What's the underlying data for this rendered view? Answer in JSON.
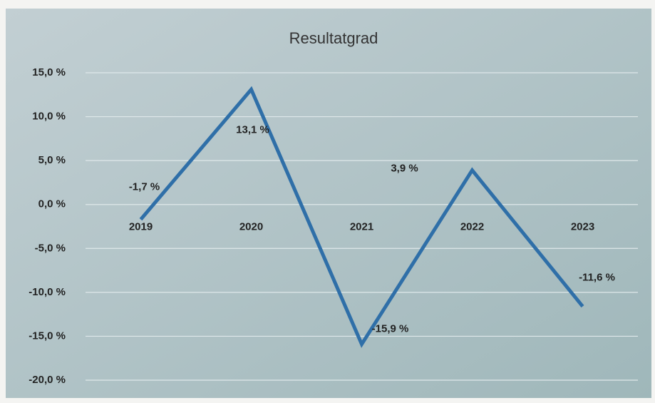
{
  "chart_data": {
    "type": "line",
    "title": "Resultatgrad",
    "categories": [
      "2019",
      "2020",
      "2021",
      "2022",
      "2023"
    ],
    "series": [
      {
        "name": "Resultatgrad",
        "color": "#2f6fa8",
        "values": [
          -1.7,
          13.1,
          -15.9,
          3.9,
          -11.6
        ],
        "value_labels": [
          "-1,7 %",
          "13,1 %",
          "-15,9 %",
          "3,9 %",
          "-11,6 %"
        ]
      }
    ],
    "ylim": [
      -20,
      15
    ],
    "yticks": [
      {
        "value": -20,
        "label": "-20,0 %"
      },
      {
        "value": -15,
        "label": "-15,0 %"
      },
      {
        "value": -10,
        "label": "-10,0 %"
      },
      {
        "value": -5,
        "label": "-5,0 %"
      },
      {
        "value": 0,
        "label": "0,0 %"
      },
      {
        "value": 5,
        "label": "5,0 %"
      },
      {
        "value": 10,
        "label": "10,0 %"
      },
      {
        "value": 15,
        "label": "15,0 %"
      }
    ],
    "grid": true
  }
}
